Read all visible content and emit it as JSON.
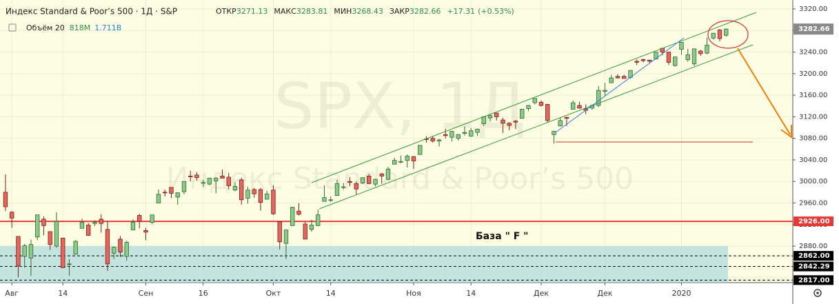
{
  "chart_data": {
    "type": "candlestick",
    "header": {
      "title": "Индекс Standard & Poor’s 500 · 1Д · S&P",
      "ohlc": [
        {
          "label": "ОТКР",
          "value": 3271.13
        },
        {
          "label": "МАКС",
          "value": 3283.81
        },
        {
          "label": "МИН",
          "value": 3268.43
        },
        {
          "label": "ЗАКР",
          "value": 3282.66
        }
      ],
      "change": {
        "value": 17.31,
        "label": "+17.31"
      },
      "change_pct": {
        "value": 0.53,
        "label": "(+0.53%)"
      }
    },
    "volume_legend": {
      "name": "Объём 20",
      "values": [
        {
          "value": 818000000,
          "label": "818M"
        },
        {
          "value": 1711000000,
          "label": "1.711B"
        }
      ]
    },
    "watermark": {
      "symbol": "SPX, 1Д",
      "name": "Индекс Standard & Poor’s 500"
    },
    "annotation": "База  \" F \"",
    "up_color": "#8cc98a",
    "down_color": "#e4675d",
    "open": [
      2980,
      2943,
      2898,
      2861,
      2858,
      2897,
      2930,
      2907,
      2880,
      2895,
      2846,
      2865,
      2913,
      2919,
      2922,
      2930,
      2911,
      2867,
      2893,
      2861,
      2910,
      2937,
      2909,
      2924,
      2960,
      2980,
      2989,
      2971,
      2981,
      3010,
      3012,
      2997,
      2995,
      3001,
      3010,
      3008,
      2984,
      3003,
      2969,
      2985,
      2985,
      2967,
      2984,
      2925,
      2885,
      2918,
      2945,
      2921,
      2911,
      2918,
      2963,
      2965,
      2974,
      2990,
      3000,
      2996,
      2997,
      3010,
      2995,
      3014,
      3004,
      3032,
      3036,
      3039,
      3046,
      3050,
      3079,
      3080,
      3075,
      3087,
      3082,
      3080,
      3089,
      3084,
      3091,
      3107,
      3118,
      3127,
      3114,
      3108,
      3112,
      3117,
      3135,
      3146,
      3147,
      3143,
      3087,
      3103,
      3119,
      3134,
      3141,
      3135,
      3136,
      3141,
      3167,
      3183,
      3195,
      3195,
      3193,
      3223,
      3226,
      3225,
      3227,
      3247,
      3240,
      3215,
      3245,
      3226,
      3218,
      3242,
      3238,
      3266,
      3281,
      3271.13
    ],
    "high": [
      3013,
      2945,
      2898,
      2884,
      2892,
      2938,
      2935,
      2907,
      2943,
      2895,
      2856,
      2891,
      2931,
      2923,
      2928,
      2939,
      2927,
      2879,
      2899,
      2890,
      2930,
      2940,
      2914,
      2938,
      2985,
      2985,
      2989,
      2979,
      3000,
      3020,
      3017,
      3003,
      3006,
      3008,
      3022,
      3016,
      2999,
      3007,
      2990,
      2988,
      2988,
      2983,
      2993,
      2925,
      2911,
      2953,
      2960,
      2925,
      2929,
      2948,
      2993,
      2972,
      3003,
      2997,
      3008,
      3000,
      3007,
      3014,
      3005,
      3016,
      3027,
      3044,
      3048,
      3050,
      3047,
      3067,
      3084,
      3084,
      3079,
      3098,
      3093,
      3088,
      3102,
      3099,
      3098,
      3121,
      3124,
      3127,
      3118,
      3110,
      3114,
      3134,
      3142,
      3154,
      3150,
      3144,
      3094,
      3119,
      3120,
      3150,
      3148,
      3143,
      3143,
      3177,
      3183,
      3198,
      3199,
      3198,
      3206,
      3226,
      3228,
      3226,
      3240,
      3247,
      3240,
      3231,
      3258,
      3246,
      3246,
      3244,
      3267,
      3275,
      3283,
      3283.81
    ],
    "low": [
      2945,
      2914,
      2822,
      2840,
      2825,
      2891,
      2900,
      2873,
      2877,
      2840,
      2825,
      2865,
      2913,
      2899,
      2917,
      2905,
      2834,
      2856,
      2860,
      2853,
      2910,
      2913,
      2891,
      2921,
      2960,
      2972,
      2969,
      2957,
      2976,
      3000,
      3002,
      2990,
      2993,
      2978,
      3006,
      2985,
      2982,
      2957,
      2959,
      2970,
      2946,
      2967,
      2938,
      2874,
      2856,
      2918,
      2937,
      2893,
      2907,
      2917,
      2963,
      2962,
      2974,
      2985,
      2991,
      2976,
      2995,
      2995,
      2991,
      2996,
      3002,
      3032,
      3034,
      3026,
      3023,
      3050,
      3072,
      3072,
      3065,
      3080,
      3074,
      3076,
      3085,
      3083,
      3084,
      3103,
      3112,
      3113,
      3090,
      3095,
      3097,
      3117,
      3131,
      3143,
      3139,
      3110,
      3070,
      3102,
      3103,
      3134,
      3135,
      3125,
      3133,
      3138,
      3158,
      3183,
      3191,
      3191,
      3191,
      3216,
      3221,
      3220,
      3227,
      3234,
      3216,
      3213,
      3235,
      3222,
      3214,
      3233,
      3236,
      3263,
      3260,
      3268.43
    ],
    "close": [
      2953,
      2932,
      2844,
      2881,
      2883,
      2938,
      2918,
      2883,
      2926,
      2840,
      2847,
      2889,
      2924,
      2900,
      2924,
      2922,
      2847,
      2878,
      2869,
      2887,
      2924,
      2926,
      2906,
      2938,
      2976,
      2979,
      2978,
      2979,
      3000,
      3009,
      3007,
      2998,
      3006,
      3006,
      3006,
      2992,
      2991,
      2966,
      2984,
      2977,
      2961,
      2977,
      2940,
      2888,
      2910,
      2952,
      2939,
      2893,
      2919,
      2938,
      2970,
      2966,
      2996,
      2990,
      2998,
      2986,
      3007,
      2996,
      3004,
      3010,
      3023,
      3039,
      3037,
      3047,
      3038,
      3067,
      3078,
      3075,
      3077,
      3085,
      3093,
      3087,
      3091,
      3094,
      3097,
      3120,
      3122,
      3120,
      3108,
      3104,
      3110,
      3134,
      3141,
      3154,
      3141,
      3113,
      3093,
      3113,
      3117,
      3146,
      3136,
      3132,
      3141,
      3169,
      3169,
      3192,
      3192,
      3191,
      3206,
      3221,
      3224,
      3223,
      3240,
      3240,
      3221,
      3231,
      3258,
      3235,
      3246,
      3237,
      3253,
      3275,
      3265,
      3282.66
    ],
    "xlim": [
      -0.86,
      123.46
    ],
    "xticks": [
      {
        "value": 1,
        "label": "Авг"
      },
      {
        "value": 9,
        "label": "14"
      },
      {
        "value": 22,
        "label": "Сен"
      },
      {
        "value": 31,
        "label": "16"
      },
      {
        "value": 42,
        "label": "Окт"
      },
      {
        "value": 51,
        "label": "14"
      },
      {
        "value": 64,
        "label": "Ноя"
      },
      {
        "value": 73,
        "label": "14"
      },
      {
        "value": 84,
        "label": "Дек"
      },
      {
        "value": 94,
        "label": "Дек"
      },
      {
        "value": 106,
        "label": "2020"
      }
    ],
    "ylim": [
      2812.3,
      3336.6
    ],
    "yticks": [
      {
        "value": 2880,
        "label": "2880.00"
      },
      {
        "value": 2920,
        "label": "2920.00"
      },
      {
        "value": 2960,
        "label": "2960.00"
      },
      {
        "value": 3000,
        "label": "3000.00"
      },
      {
        "value": 3040,
        "label": "3040.00"
      },
      {
        "value": 3080,
        "label": "3080.00"
      },
      {
        "value": 3120,
        "label": "3120.00"
      },
      {
        "value": 3160,
        "label": "3160.00"
      },
      {
        "value": 3200,
        "label": "3200.00"
      },
      {
        "value": 3240,
        "label": "3240.00"
      },
      {
        "value": 3280,
        "label": "3280.00"
      },
      {
        "value": 3320,
        "label": "3320.00"
      }
    ],
    "levels": [
      {
        "value": 2926,
        "label": "2926.00",
        "color": "#e53935",
        "style": "solid"
      },
      {
        "value": 2862,
        "label": "2862.00",
        "color": "#000000",
        "style": "dashed"
      },
      {
        "value": 2842.29,
        "label": "2842.29",
        "color": "#000000",
        "style": "dashed"
      },
      {
        "value": 2817,
        "label": "2817.00",
        "color": "#000000",
        "style": "dashed"
      }
    ],
    "grid": true
  }
}
